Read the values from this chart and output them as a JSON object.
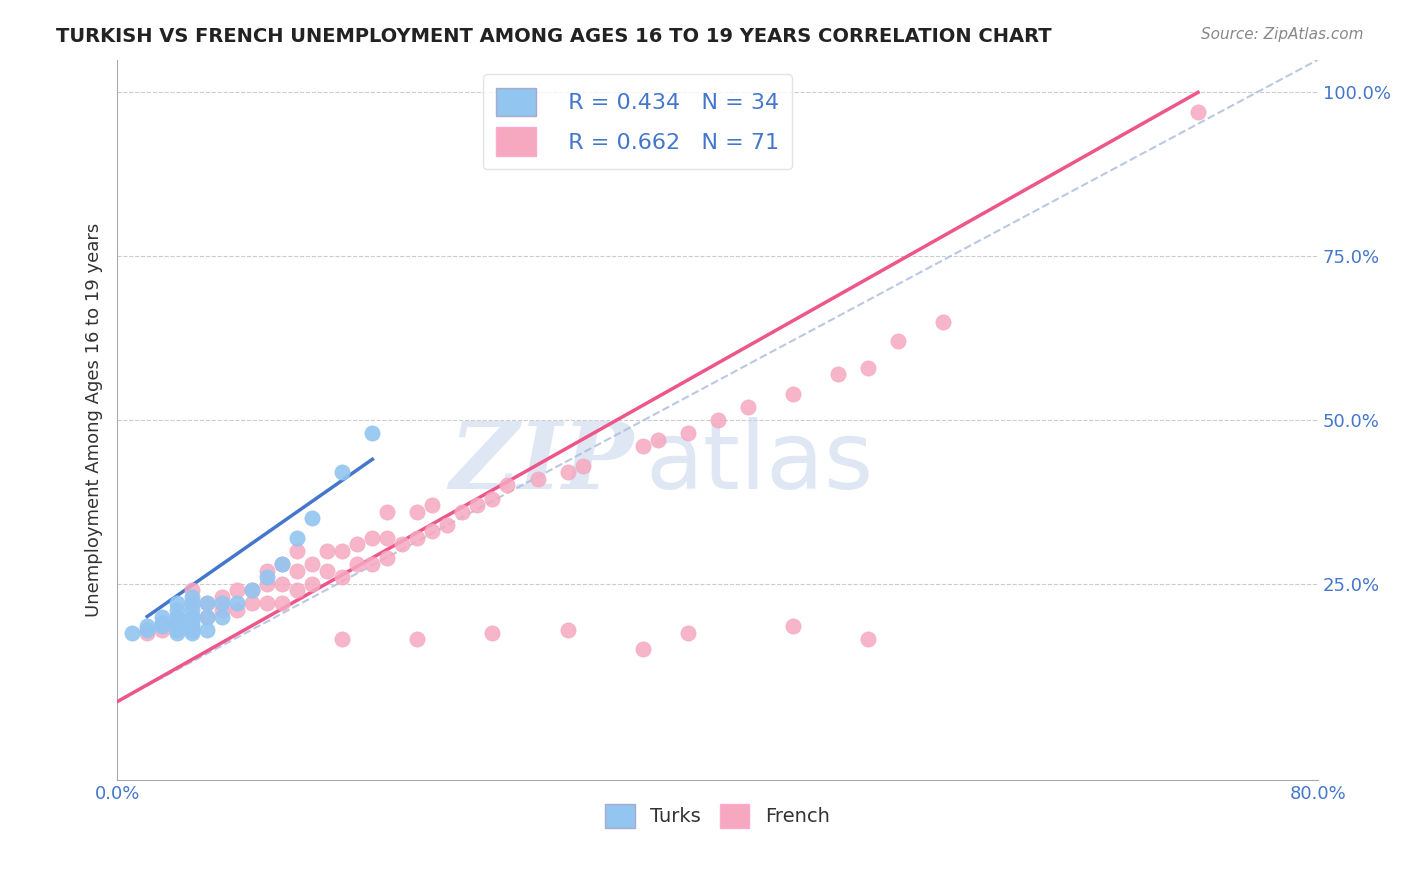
{
  "title": "TURKISH VS FRENCH UNEMPLOYMENT AMONG AGES 16 TO 19 YEARS CORRELATION CHART",
  "source": "Source: ZipAtlas.com",
  "ylabel": "Unemployment Among Ages 16 to 19 years",
  "xlim": [
    0.0,
    0.8
  ],
  "ylim": [
    -0.05,
    1.05
  ],
  "xticks": [
    0.0,
    0.1,
    0.2,
    0.3,
    0.4,
    0.5,
    0.6,
    0.7,
    0.8
  ],
  "xticklabels": [
    "0.0%",
    "",
    "",
    "",
    "",
    "",
    "",
    "",
    "80.0%"
  ],
  "ytick_positions": [
    0.25,
    0.5,
    0.75,
    1.0
  ],
  "ytick_labels": [
    "25.0%",
    "50.0%",
    "75.0%",
    "100.0%"
  ],
  "turks_R": 0.434,
  "turks_N": 34,
  "french_R": 0.662,
  "french_N": 71,
  "turks_color": "#92C5F0",
  "french_color": "#F5A8C0",
  "turks_line_color": "#4477CC",
  "french_line_color": "#EE5588",
  "dashed_line_color": "#AABBDD",
  "watermark_color": "#C8D8EC",
  "turks_x": [
    0.01,
    0.02,
    0.02,
    0.03,
    0.03,
    0.03,
    0.04,
    0.04,
    0.04,
    0.04,
    0.04,
    0.04,
    0.04,
    0.05,
    0.05,
    0.05,
    0.05,
    0.05,
    0.05,
    0.05,
    0.05,
    0.06,
    0.06,
    0.06,
    0.07,
    0.07,
    0.08,
    0.09,
    0.1,
    0.11,
    0.12,
    0.13,
    0.15,
    0.17
  ],
  "turks_y": [
    0.175,
    0.18,
    0.185,
    0.185,
    0.19,
    0.2,
    0.175,
    0.18,
    0.185,
    0.19,
    0.2,
    0.21,
    0.22,
    0.175,
    0.18,
    0.185,
    0.19,
    0.2,
    0.21,
    0.22,
    0.23,
    0.18,
    0.2,
    0.22,
    0.2,
    0.22,
    0.22,
    0.24,
    0.26,
    0.28,
    0.32,
    0.35,
    0.42,
    0.48
  ],
  "french_x": [
    0.02,
    0.03,
    0.03,
    0.04,
    0.04,
    0.05,
    0.05,
    0.05,
    0.05,
    0.06,
    0.06,
    0.07,
    0.07,
    0.08,
    0.08,
    0.09,
    0.09,
    0.1,
    0.1,
    0.1,
    0.11,
    0.11,
    0.11,
    0.12,
    0.12,
    0.12,
    0.13,
    0.13,
    0.14,
    0.14,
    0.15,
    0.15,
    0.16,
    0.16,
    0.17,
    0.17,
    0.18,
    0.18,
    0.18,
    0.19,
    0.2,
    0.2,
    0.21,
    0.21,
    0.22,
    0.23,
    0.24,
    0.25,
    0.26,
    0.28,
    0.3,
    0.31,
    0.35,
    0.36,
    0.38,
    0.4,
    0.42,
    0.45,
    0.48,
    0.5,
    0.52,
    0.55,
    0.15,
    0.2,
    0.25,
    0.3,
    0.38,
    0.45,
    0.35,
    0.5,
    0.72
  ],
  "french_y": [
    0.175,
    0.18,
    0.19,
    0.19,
    0.2,
    0.18,
    0.2,
    0.22,
    0.24,
    0.2,
    0.22,
    0.21,
    0.23,
    0.21,
    0.24,
    0.22,
    0.24,
    0.22,
    0.25,
    0.27,
    0.22,
    0.25,
    0.28,
    0.24,
    0.27,
    0.3,
    0.25,
    0.28,
    0.27,
    0.3,
    0.26,
    0.3,
    0.28,
    0.31,
    0.28,
    0.32,
    0.29,
    0.32,
    0.36,
    0.31,
    0.32,
    0.36,
    0.33,
    0.37,
    0.34,
    0.36,
    0.37,
    0.38,
    0.4,
    0.41,
    0.42,
    0.43,
    0.46,
    0.47,
    0.48,
    0.5,
    0.52,
    0.54,
    0.57,
    0.58,
    0.62,
    0.65,
    0.165,
    0.165,
    0.175,
    0.18,
    0.175,
    0.185,
    0.15,
    0.165,
    0.97
  ],
  "turks_line_x": [
    0.02,
    0.17
  ],
  "turks_line_y": [
    0.2,
    0.44
  ],
  "french_line_x": [
    0.0,
    0.72
  ],
  "french_line_y": [
    0.07,
    1.0
  ],
  "dashed_line_x": [
    0.0,
    0.8
  ],
  "dashed_line_y": [
    0.07,
    1.05
  ]
}
